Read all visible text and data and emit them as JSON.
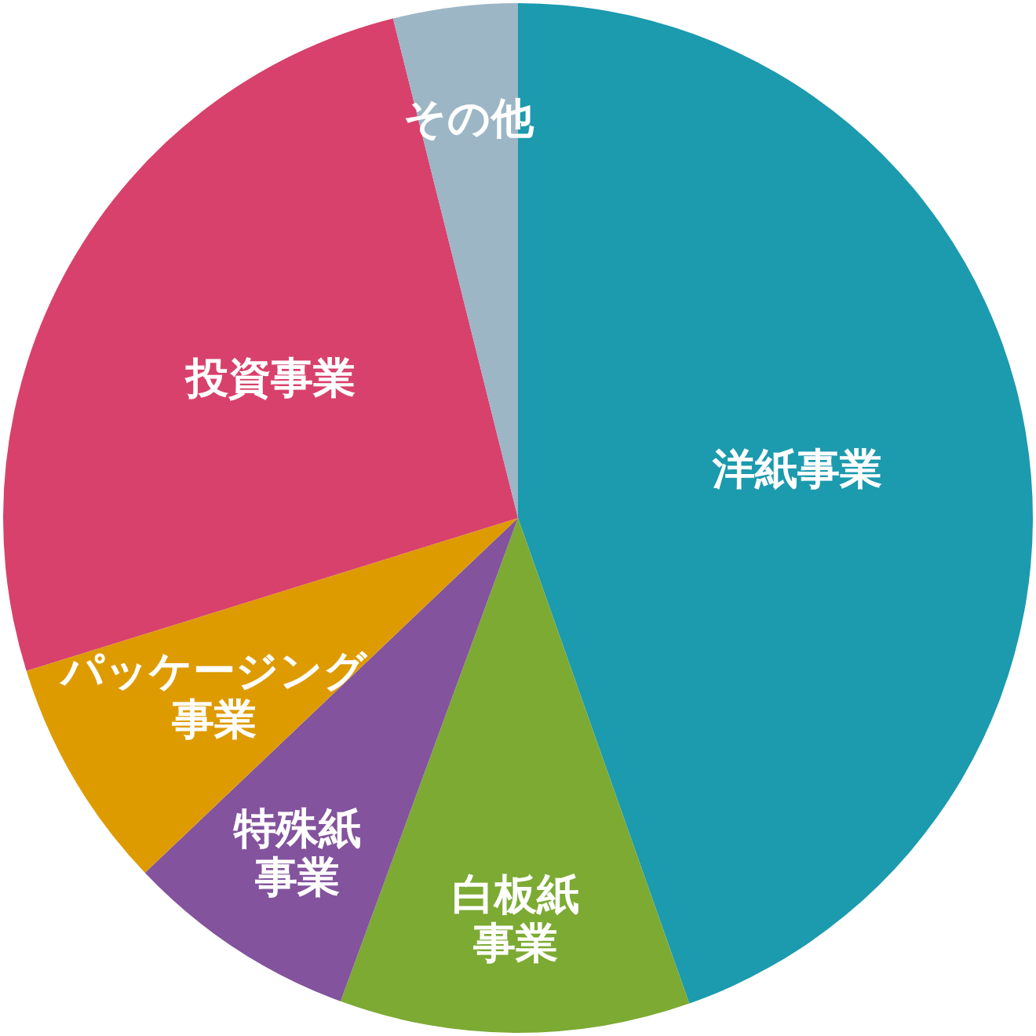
{
  "chart_data": {
    "type": "pie",
    "categories": [
      "洋紙事業",
      "白板紙事業",
      "特殊紙事業",
      "パッケージング事業",
      "投資事業",
      "その他"
    ],
    "values": [
      44.6,
      11.0,
      7.3,
      7.3,
      25.9,
      3.9
    ],
    "colors": [
      "#1c9aae",
      "#7caa33",
      "#83539d",
      "#de9b00",
      "#d8416b",
      "#9cb6c5"
    ]
  }
}
